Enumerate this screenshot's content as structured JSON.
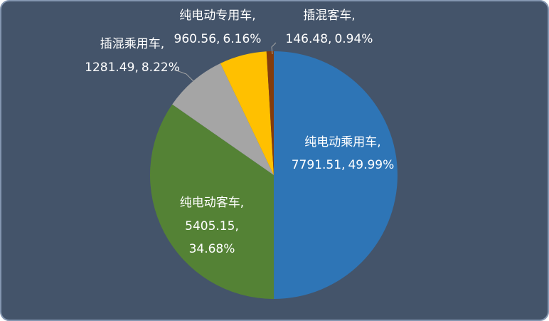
{
  "chart_data": {
    "type": "pie",
    "categories": [
      "纯电动乘用车",
      "纯电动客车",
      "插混乘用车",
      "纯电动专用车",
      "插混客车"
    ],
    "values": [
      7791.51,
      5405.15,
      1281.49,
      960.56,
      146.48
    ],
    "percentages": [
      49.99,
      34.68,
      8.22,
      6.16,
      0.94
    ],
    "percent_labels": [
      "49.99%",
      "34.68%",
      "8.22%",
      "6.16%",
      "0.94%"
    ],
    "label_separator": ",",
    "colors": [
      "#2e75b6",
      "#548235",
      "#a5a5a5",
      "#ffc000",
      "#843c0c"
    ]
  }
}
